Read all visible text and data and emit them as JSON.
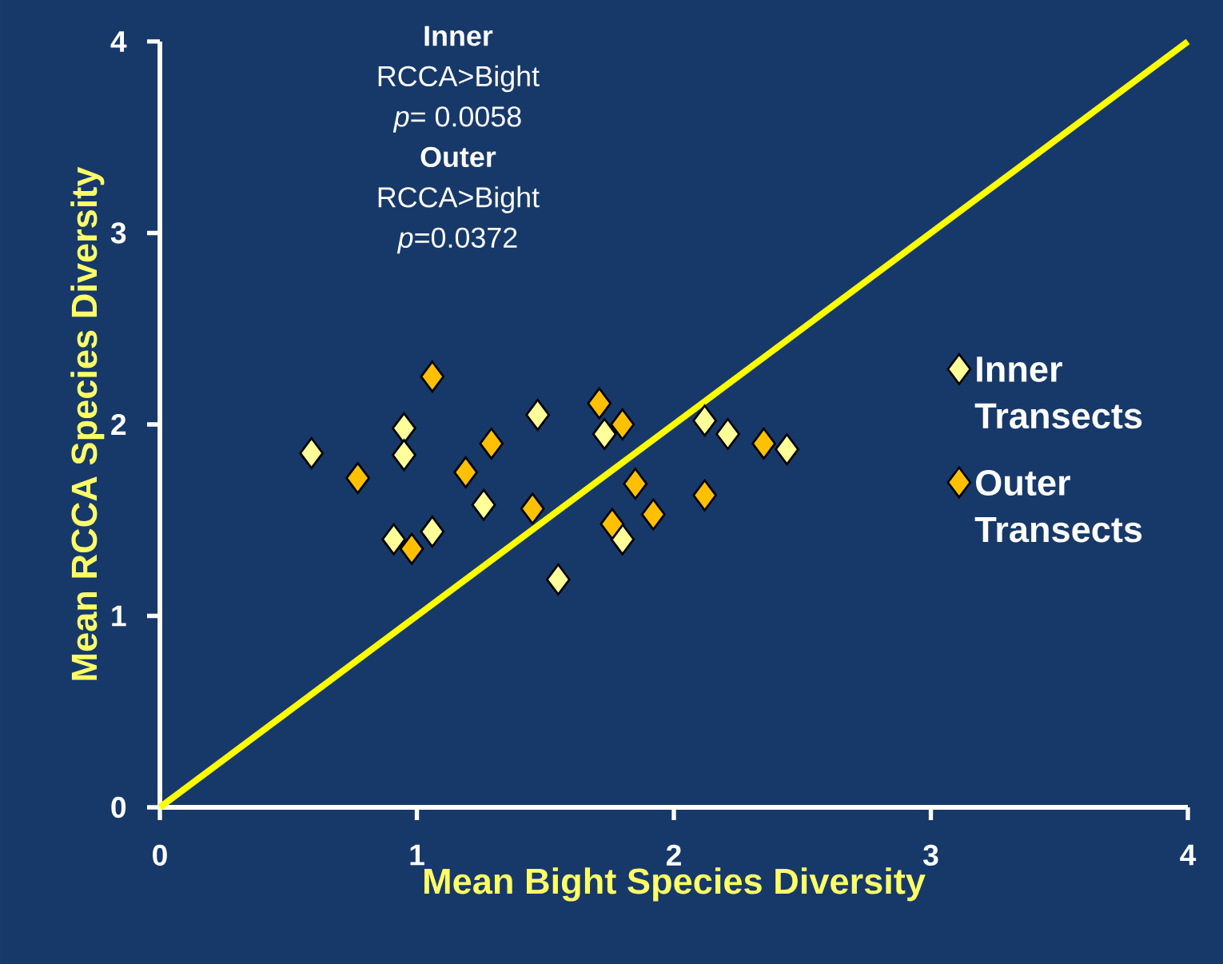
{
  "chart_data": {
    "type": "scatter",
    "xlabel": "Mean Bight Species Diversity",
    "ylabel": "Mean RCCA Species Diversity",
    "annotations": [
      "Inner",
      "RCCA>Bight",
      "*p*= 0.0058",
      "Outer",
      "RCCA>Bight",
      "*p*=0.0372"
    ],
    "xlim": [
      0,
      4
    ],
    "ylim": [
      0,
      4
    ],
    "xticks": [
      0,
      1,
      2,
      3,
      4
    ],
    "yticks": [
      0,
      1,
      2,
      3,
      4
    ],
    "grid": false,
    "legend": "right",
    "marker": "diamond",
    "series": [
      {
        "type": "line",
        "color": "#ffff00",
        "marker": "none",
        "x": [
          0,
          4
        ],
        "values": [
          0,
          4
        ]
      },
      {
        "name": "Inner Transects",
        "color": "#ffff99",
        "x": [
          0.59,
          0.95,
          0.95,
          0.91,
          1.06,
          1.26,
          1.47,
          1.55,
          1.73,
          2.12,
          2.21,
          2.44,
          1.8
        ],
        "values": [
          1.85,
          1.98,
          1.84,
          1.4,
          1.44,
          1.58,
          2.05,
          1.19,
          1.95,
          2.02,
          1.95,
          1.87,
          1.4
        ]
      },
      {
        "name": "Outer Transects",
        "color": "#ffc000",
        "x": [
          1.06,
          0.77,
          0.98,
          1.29,
          1.19,
          1.45,
          1.71,
          1.8,
          1.85,
          1.92,
          1.76,
          2.12,
          2.35
        ],
        "values": [
          2.25,
          1.72,
          1.35,
          1.9,
          1.75,
          1.56,
          2.11,
          2.0,
          1.69,
          1.53,
          1.48,
          1.63,
          1.9
        ]
      }
    ]
  }
}
